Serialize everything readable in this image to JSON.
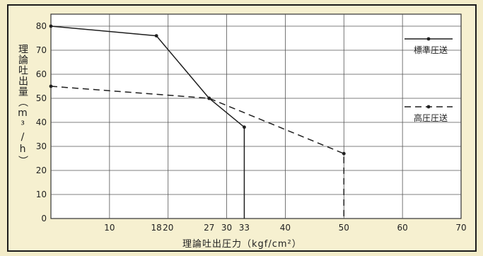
{
  "chart_data": {
    "type": "line",
    "xlabel": "理論吐出圧力（kgf/cm²）",
    "ylabel": "理論吐出量（m³/h）",
    "xlim": [
      0,
      70
    ],
    "ylim": [
      0,
      85
    ],
    "xticks": [
      10,
      18,
      20,
      27,
      30,
      33,
      40,
      50,
      60,
      70
    ],
    "yticks": [
      0,
      10,
      20,
      30,
      40,
      50,
      60,
      70,
      80
    ],
    "grid": true,
    "legend_position": "right",
    "series": [
      {
        "name": "標準圧送",
        "style": "solid",
        "color": "#1f1f1f",
        "points": [
          [
            0,
            80
          ],
          [
            18,
            76
          ],
          [
            27,
            50
          ],
          [
            33,
            38
          ],
          [
            33,
            0
          ]
        ]
      },
      {
        "name": "高圧圧送",
        "style": "dashed",
        "color": "#1f1f1f",
        "points": [
          [
            0,
            55
          ],
          [
            27,
            50
          ],
          [
            50,
            27
          ],
          [
            50,
            0
          ]
        ]
      }
    ]
  }
}
